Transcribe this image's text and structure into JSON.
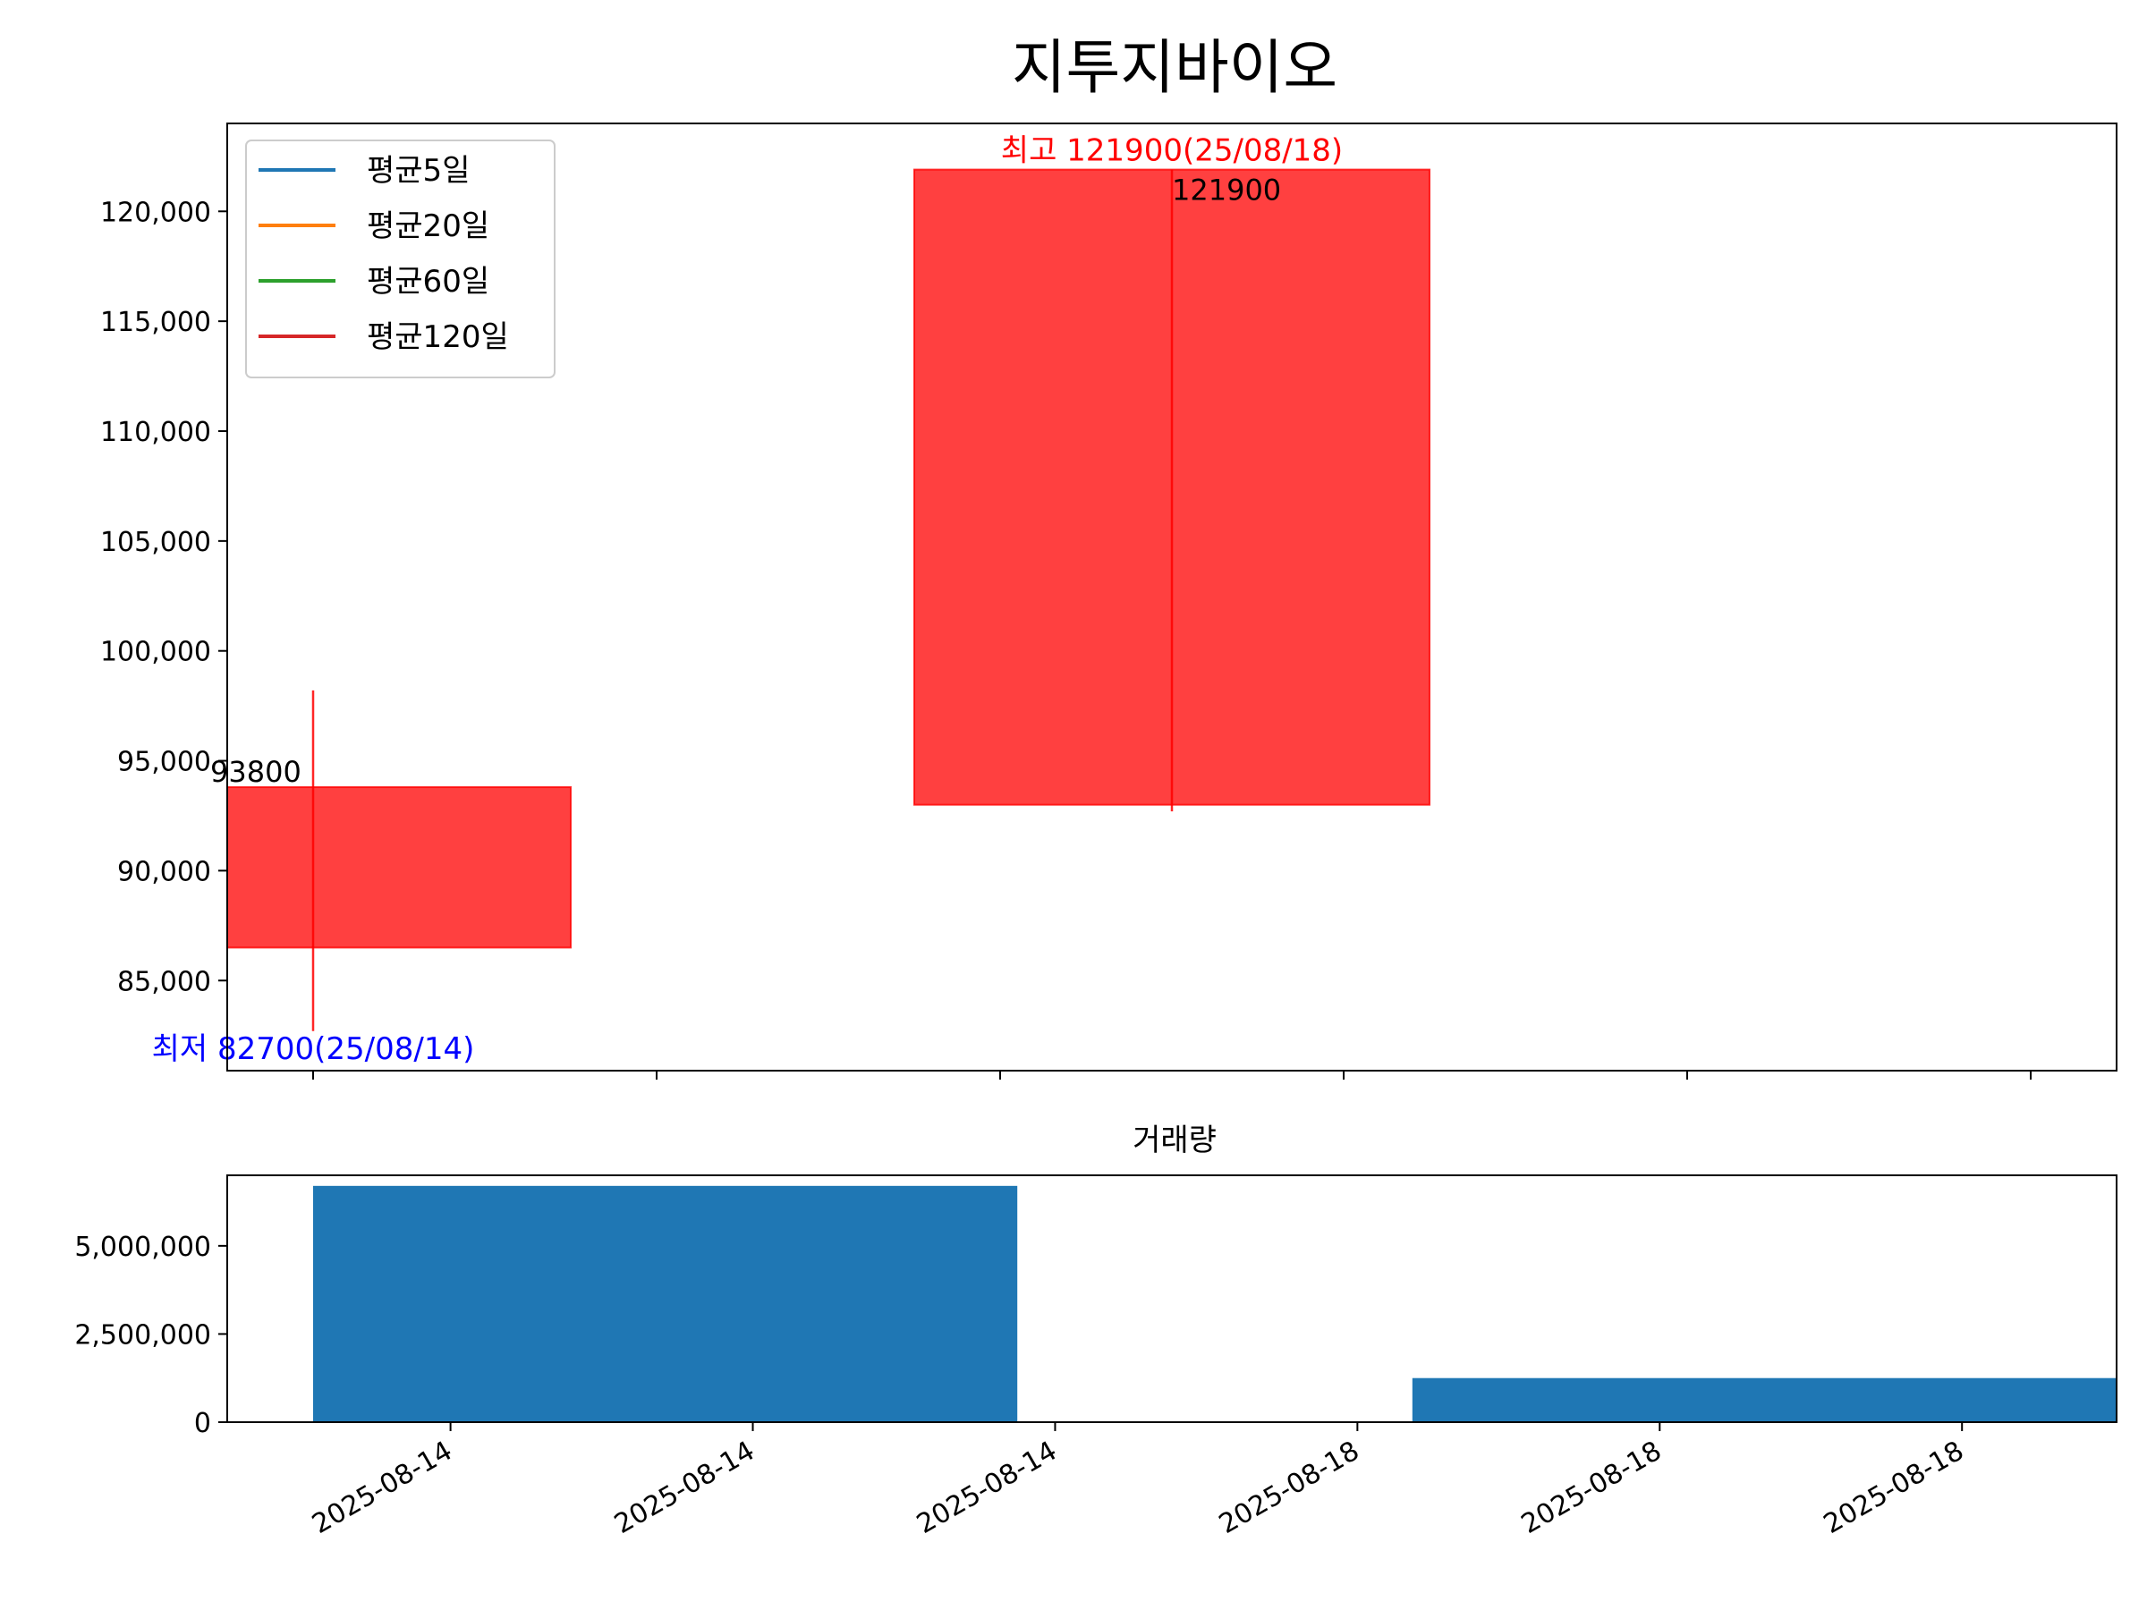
{
  "chart_data": [
    {
      "type": "candlestick",
      "title": "지투지바이오",
      "xlabel": "",
      "ylabel": "",
      "ylim": [
        80900,
        124000
      ],
      "yticks": [
        85000,
        90000,
        95000,
        100000,
        105000,
        110000,
        115000,
        120000
      ],
      "ytick_labels": [
        "85,000",
        "90,000",
        "95,000",
        "100,000",
        "105,000",
        "110,000",
        "115,000",
        "120,000"
      ],
      "xlim": [
        -0.25,
        5.25
      ],
      "xticks": [
        0,
        1,
        2,
        3,
        4,
        5
      ],
      "grid": false,
      "legend_position": "upper-left",
      "legend": [
        {
          "label": "평균5일",
          "color": "#1f77b4"
        },
        {
          "label": "평균20일",
          "color": "#ff7f0e"
        },
        {
          "label": "평균60일",
          "color": "#2ca02c"
        },
        {
          "label": "평균120일",
          "color": "#d62728"
        }
      ],
      "candles": [
        {
          "date": "2025-08-14",
          "x_start": -0.25,
          "x_end": 0.75,
          "wick_x": 0,
          "open": 86500,
          "close": 93800,
          "high": 98200,
          "low": 82700,
          "color": "#ff0000",
          "label": "93800"
        },
        {
          "date": "2025-08-18",
          "x_start": 1.75,
          "x_end": 3.25,
          "wick_x": 2.5,
          "open": 93000,
          "close": 121900,
          "high": 121900,
          "low": 92700,
          "color": "#ff0000",
          "label": "121900"
        }
      ],
      "annotations": {
        "high": {
          "text": "최고 121900(25/08/18)",
          "color": "#ff0000",
          "value": 121900
        },
        "low": {
          "text": "최저 82700(25/08/14)",
          "color": "#0000ff",
          "value": 82700
        }
      }
    },
    {
      "type": "bar",
      "title": "거래량",
      "xlabel": "",
      "ylabel": "",
      "ylim": [
        0,
        7000000
      ],
      "yticks": [
        0,
        2500000,
        5000000
      ],
      "ytick_labels": [
        "0",
        "2,500,000",
        "5,000,000"
      ],
      "xlim": [
        -0.25,
        5.25
      ],
      "categories": [
        "2025-08-14",
        "2025-08-18"
      ],
      "bars": [
        {
          "date": "2025-08-14",
          "x_start": 0,
          "x_end": 2.05,
          "value": 6700000
        },
        {
          "date": "2025-08-18",
          "x_start": 3.2,
          "x_end": 5.25,
          "value": 1250000
        }
      ],
      "color": "#1f77b4",
      "xticks": [
        0.4,
        1.28,
        2.16,
        3.04,
        3.92,
        4.8
      ],
      "xtick_labels": [
        "2025-08-14",
        "2025-08-14",
        "2025-08-14",
        "2025-08-18",
        "2025-08-18",
        "2025-08-18"
      ]
    }
  ]
}
